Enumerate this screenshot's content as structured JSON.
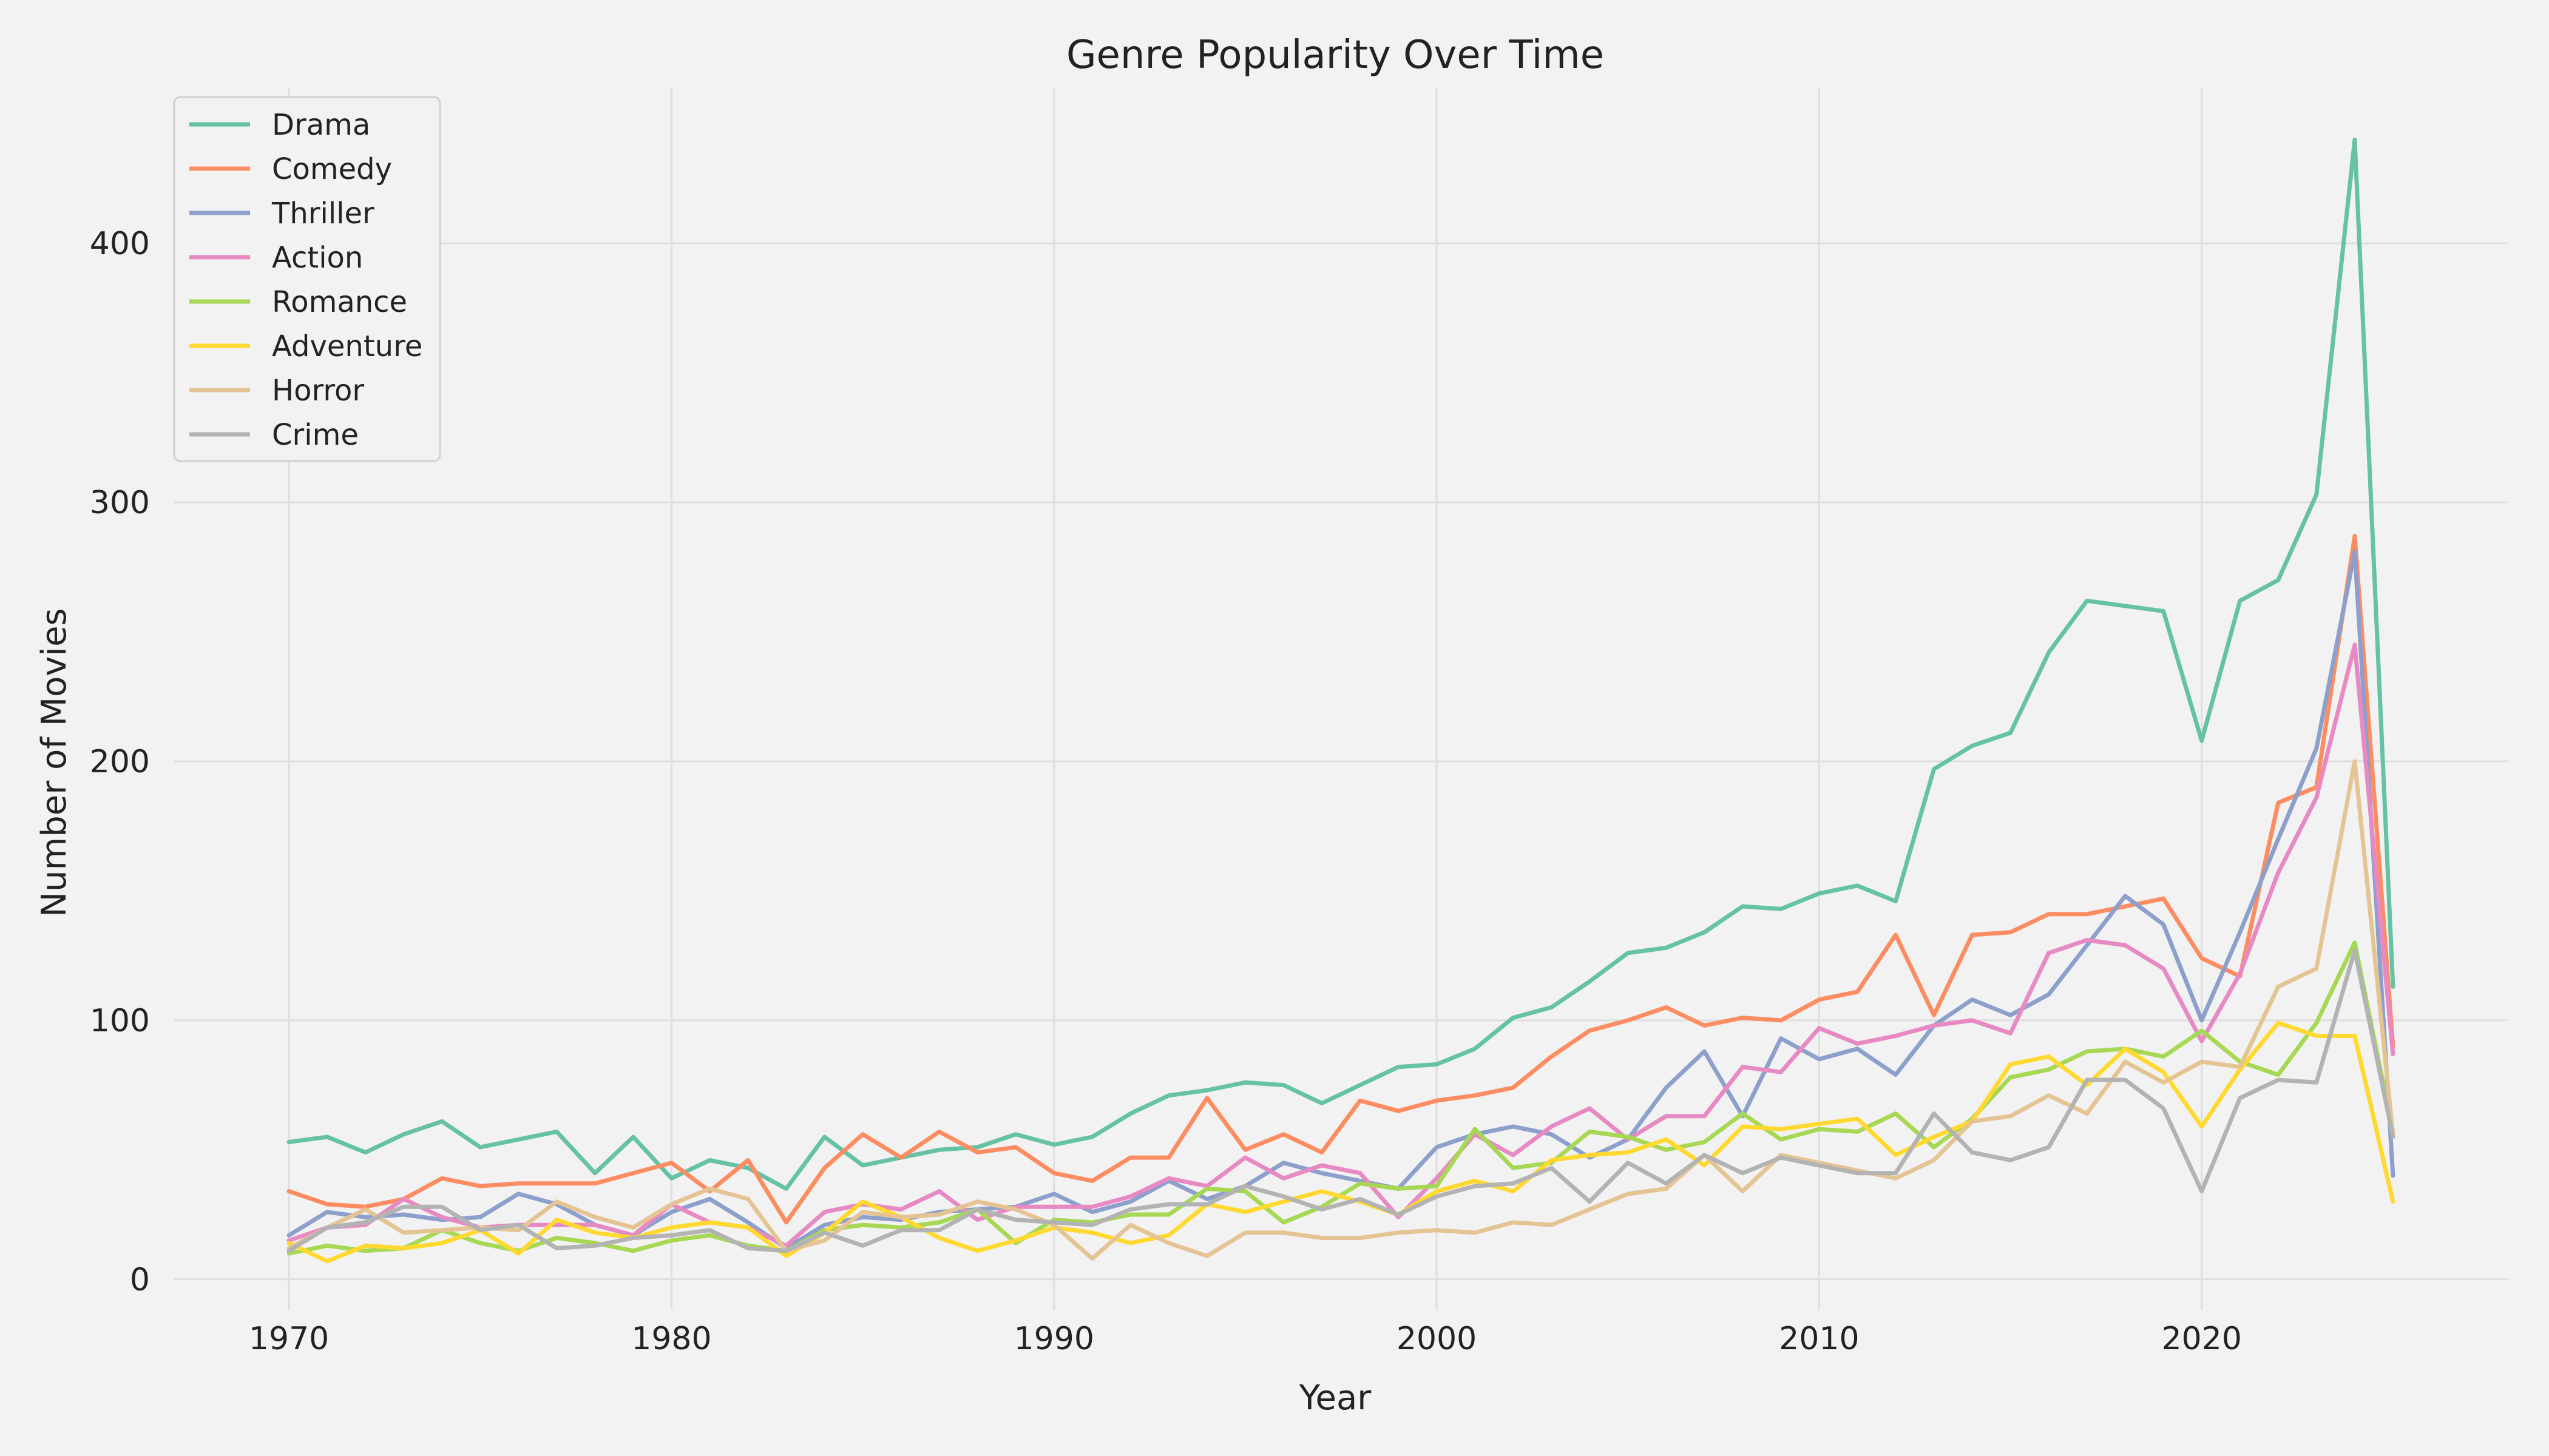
{
  "chart_data": {
    "type": "line",
    "title": "Genre Popularity Over Time",
    "xlabel": "Year",
    "ylabel": "Number of Movies",
    "xlim": [
      1967,
      2028
    ],
    "ylim": [
      -12,
      460
    ],
    "xticks": [
      1970,
      1980,
      1990,
      2000,
      2010,
      2020
    ],
    "yticks": [
      0,
      100,
      200,
      300,
      400
    ],
    "grid": true,
    "legend": "top-left",
    "x": [
      1970,
      1971,
      1972,
      1973,
      1974,
      1975,
      1976,
      1977,
      1978,
      1979,
      1980,
      1981,
      1982,
      1983,
      1984,
      1985,
      1986,
      1987,
      1988,
      1989,
      1990,
      1991,
      1992,
      1993,
      1994,
      1995,
      1996,
      1997,
      1998,
      1999,
      2000,
      2001,
      2002,
      2003,
      2004,
      2005,
      2006,
      2007,
      2008,
      2009,
      2010,
      2011,
      2012,
      2013,
      2014,
      2015,
      2016,
      2017,
      2018,
      2019,
      2020,
      2021,
      2022,
      2023,
      2024,
      2025
    ],
    "series": [
      {
        "name": "Drama",
        "color": "#66c2a5",
        "values": [
          53,
          55,
          49,
          56,
          61,
          51,
          54,
          57,
          41,
          55,
          39,
          46,
          43,
          35,
          55,
          44,
          47,
          50,
          51,
          56,
          52,
          55,
          64,
          71,
          73,
          76,
          75,
          68,
          75,
          82,
          83,
          89,
          101,
          105,
          115,
          126,
          128,
          134,
          144,
          143,
          149,
          152,
          146,
          197,
          206,
          211,
          242,
          262,
          260,
          258,
          208,
          262,
          270,
          303,
          440,
          113
        ]
      },
      {
        "name": "Comedy",
        "color": "#fc8d62",
        "values": [
          34,
          29,
          28,
          31,
          39,
          36,
          37,
          37,
          37,
          41,
          45,
          34,
          46,
          22,
          43,
          56,
          47,
          57,
          49,
          51,
          41,
          38,
          47,
          47,
          70,
          50,
          56,
          49,
          69,
          65,
          69,
          71,
          74,
          86,
          96,
          100,
          105,
          98,
          101,
          100,
          108,
          111,
          133,
          102,
          133,
          134,
          141,
          141,
          144,
          147,
          124,
          117,
          184,
          190,
          287,
          90
        ]
      },
      {
        "name": "Thriller",
        "color": "#8da0cb",
        "values": [
          17,
          26,
          24,
          25,
          23,
          24,
          33,
          29,
          21,
          17,
          26,
          31,
          22,
          12,
          21,
          24,
          23,
          26,
          27,
          28,
          33,
          26,
          30,
          38,
          31,
          36,
          45,
          41,
          38,
          35,
          51,
          56,
          59,
          56,
          47,
          54,
          74,
          88,
          63,
          93,
          85,
          89,
          79,
          98,
          108,
          102,
          110,
          129,
          148,
          137,
          100,
          134,
          170,
          205,
          281,
          40
        ]
      },
      {
        "name": "Action",
        "color": "#e78ac3",
        "values": [
          15,
          20,
          21,
          31,
          24,
          20,
          21,
          21,
          21,
          17,
          29,
          22,
          20,
          13,
          26,
          29,
          27,
          34,
          23,
          28,
          28,
          28,
          32,
          39,
          36,
          47,
          39,
          44,
          41,
          24,
          39,
          56,
          48,
          59,
          66,
          54,
          63,
          63,
          82,
          80,
          97,
          91,
          94,
          98,
          100,
          95,
          126,
          131,
          129,
          120,
          92,
          118,
          157,
          186,
          245,
          87
        ]
      },
      {
        "name": "Romance",
        "color": "#a6d854",
        "values": [
          10,
          13,
          11,
          12,
          19,
          14,
          11,
          16,
          14,
          11,
          15,
          17,
          13,
          11,
          19,
          21,
          20,
          22,
          27,
          14,
          23,
          22,
          25,
          25,
          35,
          34,
          22,
          28,
          37,
          35,
          36,
          58,
          43,
          45,
          57,
          55,
          50,
          53,
          64,
          54,
          58,
          57,
          64,
          51,
          62,
          78,
          81,
          88,
          89,
          86,
          96,
          84,
          79,
          99,
          130,
          57
        ]
      },
      {
        "name": "Adventure",
        "color": "#ffd92f",
        "values": [
          14,
          7,
          13,
          12,
          14,
          19,
          10,
          23,
          18,
          16,
          20,
          22,
          20,
          9,
          18,
          30,
          24,
          16,
          11,
          15,
          20,
          18,
          14,
          17,
          29,
          26,
          30,
          34,
          30,
          25,
          34,
          38,
          34,
          46,
          48,
          49,
          54,
          44,
          59,
          58,
          60,
          62,
          48,
          55,
          61,
          83,
          86,
          75,
          89,
          80,
          59,
          81,
          99,
          94,
          94,
          30
        ]
      },
      {
        "name": "Horror",
        "color": "#e5c494",
        "values": [
          12,
          20,
          27,
          18,
          19,
          20,
          19,
          30,
          24,
          20,
          29,
          35,
          31,
          11,
          15,
          26,
          24,
          25,
          30,
          27,
          21,
          8,
          21,
          14,
          9,
          18,
          18,
          16,
          16,
          18,
          19,
          18,
          22,
          21,
          27,
          33,
          35,
          48,
          34,
          48,
          45,
          42,
          39,
          46,
          61,
          63,
          71,
          64,
          84,
          76,
          84,
          82,
          113,
          120,
          200,
          56
        ]
      },
      {
        "name": "Crime",
        "color": "#b3b3b3",
        "values": [
          11,
          20,
          22,
          28,
          28,
          19,
          21,
          12,
          13,
          16,
          17,
          19,
          12,
          11,
          18,
          13,
          19,
          19,
          27,
          23,
          22,
          21,
          27,
          29,
          29,
          36,
          32,
          27,
          31,
          25,
          32,
          36,
          37,
          43,
          30,
          45,
          37,
          48,
          41,
          47,
          44,
          41,
          41,
          64,
          49,
          46,
          51,
          77,
          77,
          66,
          34,
          70,
          77,
          76,
          127,
          55
        ]
      }
    ]
  }
}
